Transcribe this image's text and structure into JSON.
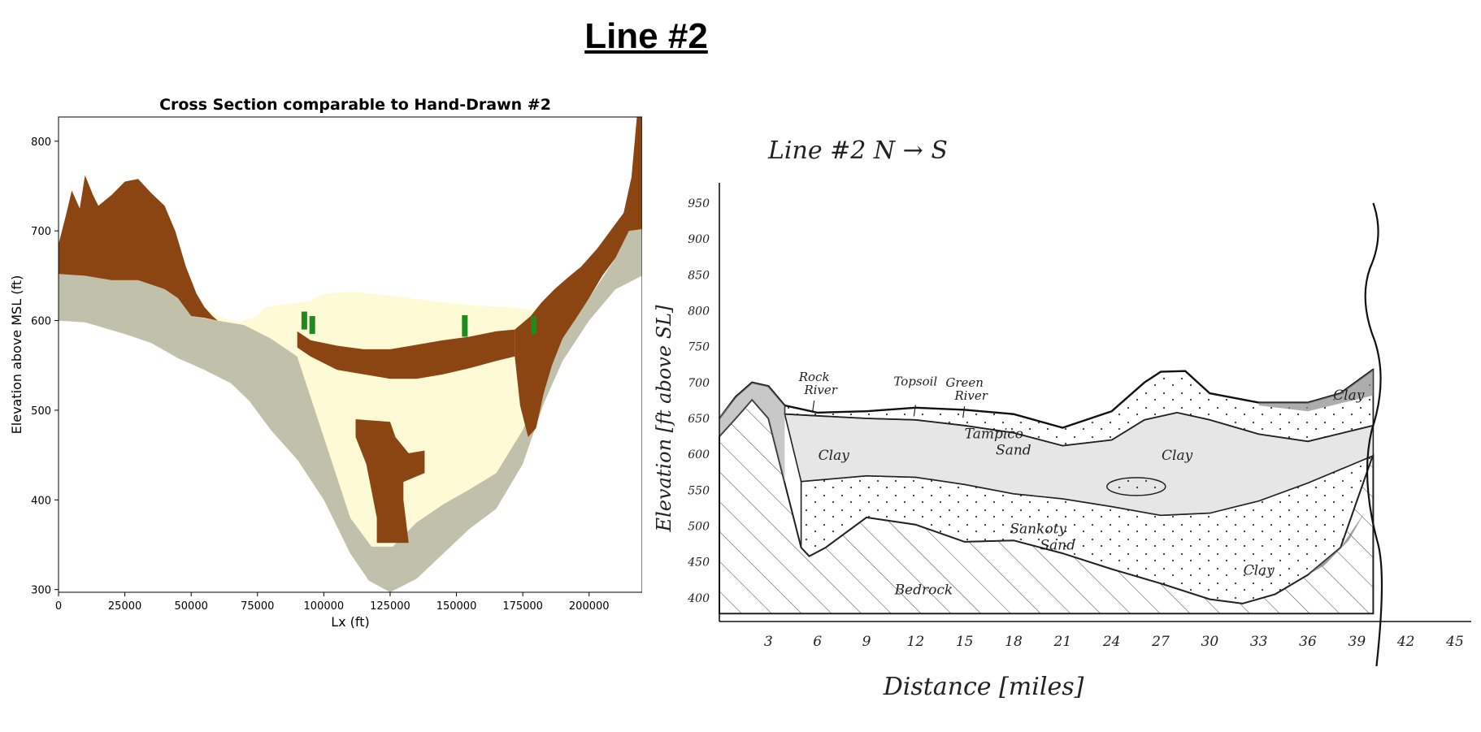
{
  "page_title": "Line #2",
  "chart_data": [
    {
      "type": "heatmap",
      "title": "Cross Section comparable to Hand-Drawn #2",
      "xlabel": "Lx (ft)",
      "ylabel": "Elevation above MSL (ft)",
      "xlim": [
        0,
        220000
      ],
      "ylim": [
        297,
        827
      ],
      "x_ticks": [
        0,
        25000,
        50000,
        75000,
        100000,
        125000,
        150000,
        175000,
        200000
      ],
      "y_ticks": [
        300,
        400,
        500,
        600,
        700,
        800
      ],
      "colors": {
        "bedrock": "#c1c1ab",
        "clay": "#8b4513",
        "sand": "#fdfad5",
        "well": "#1f8a1f"
      },
      "bedrock_base": [
        {
          "x": 0,
          "y": 600
        },
        {
          "x": 10000,
          "y": 598
        },
        {
          "x": 25000,
          "y": 585
        },
        {
          "x": 35000,
          "y": 575
        },
        {
          "x": 45000,
          "y": 558
        },
        {
          "x": 55000,
          "y": 545
        },
        {
          "x": 65000,
          "y": 530
        },
        {
          "x": 72000,
          "y": 510
        },
        {
          "x": 80000,
          "y": 478
        },
        {
          "x": 90000,
          "y": 445
        },
        {
          "x": 100000,
          "y": 400
        },
        {
          "x": 110000,
          "y": 340
        },
        {
          "x": 117000,
          "y": 310
        },
        {
          "x": 125000,
          "y": 297
        },
        {
          "x": 135000,
          "y": 312
        },
        {
          "x": 145000,
          "y": 340
        },
        {
          "x": 155000,
          "y": 368
        },
        {
          "x": 165000,
          "y": 390
        },
        {
          "x": 175000,
          "y": 440
        },
        {
          "x": 183000,
          "y": 508
        },
        {
          "x": 190000,
          "y": 555
        },
        {
          "x": 200000,
          "y": 600
        },
        {
          "x": 210000,
          "y": 635
        },
        {
          "x": 220000,
          "y": 650
        }
      ],
      "bedrock_top": [
        {
          "x": 0,
          "y": 652
        },
        {
          "x": 10000,
          "y": 650
        },
        {
          "x": 20000,
          "y": 645
        },
        {
          "x": 30000,
          "y": 645
        },
        {
          "x": 40000,
          "y": 635
        },
        {
          "x": 45000,
          "y": 625
        },
        {
          "x": 50000,
          "y": 605
        },
        {
          "x": 60000,
          "y": 600
        },
        {
          "x": 70000,
          "y": 595
        },
        {
          "x": 80000,
          "y": 580
        },
        {
          "x": 90000,
          "y": 560
        },
        {
          "x": 100000,
          "y": 470
        },
        {
          "x": 110000,
          "y": 380
        },
        {
          "x": 118000,
          "y": 348
        },
        {
          "x": 126000,
          "y": 348
        },
        {
          "x": 135000,
          "y": 375
        },
        {
          "x": 145000,
          "y": 395
        },
        {
          "x": 155000,
          "y": 412
        },
        {
          "x": 165000,
          "y": 430
        },
        {
          "x": 175000,
          "y": 478
        },
        {
          "x": 182000,
          "y": 530
        },
        {
          "x": 190000,
          "y": 580
        },
        {
          "x": 200000,
          "y": 625
        },
        {
          "x": 210000,
          "y": 670
        },
        {
          "x": 215000,
          "y": 700
        },
        {
          "x": 220000,
          "y": 702
        }
      ],
      "upper_clay_top": [
        {
          "x": 0,
          "y": 685
        },
        {
          "x": 3000,
          "y": 720
        },
        {
          "x": 5000,
          "y": 745
        },
        {
          "x": 8000,
          "y": 725
        },
        {
          "x": 10000,
          "y": 762
        },
        {
          "x": 13000,
          "y": 740
        },
        {
          "x": 15000,
          "y": 728
        },
        {
          "x": 20000,
          "y": 740
        },
        {
          "x": 25000,
          "y": 755
        },
        {
          "x": 30000,
          "y": 758
        },
        {
          "x": 35000,
          "y": 742
        },
        {
          "x": 40000,
          "y": 728
        },
        {
          "x": 44000,
          "y": 700
        },
        {
          "x": 48000,
          "y": 660
        },
        {
          "x": 52000,
          "y": 630
        },
        {
          "x": 55000,
          "y": 615
        },
        {
          "x": 58000,
          "y": 605
        },
        {
          "x": 60000,
          "y": 600
        }
      ],
      "upper_clay_base": [
        {
          "x": 60000,
          "y": 600
        },
        {
          "x": 55000,
          "y": 603
        },
        {
          "x": 50000,
          "y": 605
        },
        {
          "x": 45000,
          "y": 625
        },
        {
          "x": 40000,
          "y": 635
        },
        {
          "x": 30000,
          "y": 645
        },
        {
          "x": 20000,
          "y": 645
        },
        {
          "x": 10000,
          "y": 650
        },
        {
          "x": 0,
          "y": 652
        }
      ],
      "sand_top": [
        {
          "x": 55000,
          "y": 615
        },
        {
          "x": 60000,
          "y": 605
        },
        {
          "x": 68000,
          "y": 598
        },
        {
          "x": 75000,
          "y": 605
        },
        {
          "x": 78000,
          "y": 615
        },
        {
          "x": 85000,
          "y": 618
        },
        {
          "x": 95000,
          "y": 622
        },
        {
          "x": 100000,
          "y": 630
        },
        {
          "x": 110000,
          "y": 632
        },
        {
          "x": 125000,
          "y": 628
        },
        {
          "x": 140000,
          "y": 622
        },
        {
          "x": 155000,
          "y": 617
        },
        {
          "x": 170000,
          "y": 615
        },
        {
          "x": 178000,
          "y": 612
        },
        {
          "x": 185000,
          "y": 620
        },
        {
          "x": 190000,
          "y": 625
        }
      ],
      "middle_clay_upper": [
        {
          "x": 90000,
          "y": 588
        },
        {
          "x": 95000,
          "y": 578
        },
        {
          "x": 105000,
          "y": 572
        },
        {
          "x": 115000,
          "y": 568
        },
        {
          "x": 125000,
          "y": 568
        },
        {
          "x": 135000,
          "y": 573
        },
        {
          "x": 145000,
          "y": 578
        },
        {
          "x": 155000,
          "y": 582
        },
        {
          "x": 165000,
          "y": 588
        },
        {
          "x": 172000,
          "y": 590
        }
      ],
      "middle_clay_lower": [
        {
          "x": 172000,
          "y": 560
        },
        {
          "x": 165000,
          "y": 555
        },
        {
          "x": 155000,
          "y": 547
        },
        {
          "x": 145000,
          "y": 540
        },
        {
          "x": 135000,
          "y": 535
        },
        {
          "x": 125000,
          "y": 535
        },
        {
          "x": 115000,
          "y": 540
        },
        {
          "x": 105000,
          "y": 545
        },
        {
          "x": 95000,
          "y": 560
        },
        {
          "x": 90000,
          "y": 570
        }
      ],
      "right_clay_wedge": [
        {
          "x": 172000,
          "y": 590
        },
        {
          "x": 178000,
          "y": 605
        },
        {
          "x": 182000,
          "y": 620
        },
        {
          "x": 187000,
          "y": 635
        },
        {
          "x": 192000,
          "y": 648
        },
        {
          "x": 197000,
          "y": 660
        },
        {
          "x": 203000,
          "y": 680
        },
        {
          "x": 208000,
          "y": 700
        },
        {
          "x": 213000,
          "y": 720
        },
        {
          "x": 216000,
          "y": 760
        },
        {
          "x": 218000,
          "y": 827
        },
        {
          "x": 220000,
          "y": 827
        },
        {
          "x": 220000,
          "y": 702
        },
        {
          "x": 215000,
          "y": 700
        },
        {
          "x": 210000,
          "y": 670
        },
        {
          "x": 205000,
          "y": 650
        },
        {
          "x": 200000,
          "y": 625
        },
        {
          "x": 195000,
          "y": 602
        },
        {
          "x": 190000,
          "y": 580
        },
        {
          "x": 186000,
          "y": 550
        },
        {
          "x": 183000,
          "y": 520
        },
        {
          "x": 180000,
          "y": 480
        },
        {
          "x": 177000,
          "y": 470
        },
        {
          "x": 174000,
          "y": 505
        },
        {
          "x": 172000,
          "y": 560
        }
      ],
      "lower_clay_body": [
        {
          "x": 112000,
          "y": 490
        },
        {
          "x": 125000,
          "y": 487
        },
        {
          "x": 127000,
          "y": 470
        },
        {
          "x": 132000,
          "y": 452
        },
        {
          "x": 138000,
          "y": 455
        },
        {
          "x": 138000,
          "y": 430
        },
        {
          "x": 130000,
          "y": 420
        },
        {
          "x": 130000,
          "y": 400
        },
        {
          "x": 132000,
          "y": 352
        },
        {
          "x": 120000,
          "y": 352
        },
        {
          "x": 120000,
          "y": 380
        },
        {
          "x": 118000,
          "y": 410
        },
        {
          "x": 116000,
          "y": 440
        },
        {
          "x": 112000,
          "y": 470
        }
      ],
      "wells": [
        {
          "x": 92500,
          "bottom": 590,
          "top": 610
        },
        {
          "x": 95500,
          "bottom": 585,
          "top": 605
        },
        {
          "x": 153000,
          "bottom": 582,
          "top": 606
        },
        {
          "x": 179000,
          "bottom": 585,
          "top": 605
        }
      ]
    },
    {
      "type": "area",
      "title": "Line #2   N → S",
      "xlabel": "Distance [miles]",
      "ylabel": "Elevation [ft above SL]",
      "x_ticks": [
        "3",
        "6",
        "9",
        "12",
        "15",
        "18",
        "21",
        "24",
        "27",
        "30",
        "33",
        "36",
        "39",
        "42",
        "45"
      ],
      "y_ticks": [
        "950",
        "900",
        "850",
        "800",
        "750",
        "700",
        "650",
        "600",
        "550",
        "500",
        "450",
        "400"
      ],
      "xlim": [
        0,
        45
      ],
      "ylim": [
        350,
        950
      ],
      "annotations": [
        {
          "text": "Rock River",
          "x": 5.8,
          "y": 668
        },
        {
          "text": "Topsoil",
          "x": 12,
          "y": 662
        },
        {
          "text": "Green River",
          "x": 15,
          "y": 660
        }
      ],
      "layer_labels": [
        {
          "text": "Clay",
          "x": 38.5,
          "y": 676
        },
        {
          "text": "Tampico Sand",
          "x": 16.8,
          "y": 622
        },
        {
          "text": "Clay",
          "x": 7,
          "y": 592
        },
        {
          "text": "Clay",
          "x": 28,
          "y": 592
        },
        {
          "text": "Sankoty Sand",
          "x": 19.5,
          "y": 490
        },
        {
          "text": "Clay",
          "x": 33,
          "y": 432
        },
        {
          "text": "Bedrock",
          "x": 12.5,
          "y": 405
        }
      ],
      "surface": [
        {
          "x": 0,
          "y": 650
        },
        {
          "x": 1,
          "y": 680
        },
        {
          "x": 2,
          "y": 700
        },
        {
          "x": 3,
          "y": 695
        },
        {
          "x": 4,
          "y": 668
        },
        {
          "x": 6,
          "y": 658
        },
        {
          "x": 9,
          "y": 660
        },
        {
          "x": 12,
          "y": 665
        },
        {
          "x": 15,
          "y": 662
        },
        {
          "x": 18,
          "y": 656
        },
        {
          "x": 21,
          "y": 637
        },
        {
          "x": 24,
          "y": 660
        },
        {
          "x": 26,
          "y": 700
        },
        {
          "x": 27,
          "y": 715
        },
        {
          "x": 28.5,
          "y": 716
        },
        {
          "x": 30,
          "y": 685
        },
        {
          "x": 33,
          "y": 672
        },
        {
          "x": 36,
          "y": 672
        },
        {
          "x": 38,
          "y": 685
        },
        {
          "x": 40,
          "y": 718
        }
      ],
      "sand_base": [
        {
          "x": 4,
          "y": 656
        },
        {
          "x": 9,
          "y": 650
        },
        {
          "x": 12,
          "y": 648
        },
        {
          "x": 15,
          "y": 640
        },
        {
          "x": 18,
          "y": 630
        },
        {
          "x": 21,
          "y": 612
        },
        {
          "x": 24,
          "y": 620
        },
        {
          "x": 26,
          "y": 648
        },
        {
          "x": 28,
          "y": 658
        },
        {
          "x": 30,
          "y": 648
        },
        {
          "x": 33,
          "y": 628
        },
        {
          "x": 36,
          "y": 618
        },
        {
          "x": 40,
          "y": 640
        }
      ],
      "clay_base": [
        {
          "x": 5,
          "y": 562
        },
        {
          "x": 9,
          "y": 570
        },
        {
          "x": 12,
          "y": 568
        },
        {
          "x": 15,
          "y": 558
        },
        {
          "x": 18,
          "y": 545
        },
        {
          "x": 21,
          "y": 538
        },
        {
          "x": 24,
          "y": 527
        },
        {
          "x": 27,
          "y": 515
        },
        {
          "x": 30,
          "y": 518
        },
        {
          "x": 33,
          "y": 535
        },
        {
          "x": 36,
          "y": 560
        },
        {
          "x": 40,
          "y": 598
        }
      ],
      "bedrock_top": [
        {
          "x": 0,
          "y": 625
        },
        {
          "x": 1,
          "y": 650
        },
        {
          "x": 2,
          "y": 676
        },
        {
          "x": 3,
          "y": 650
        },
        {
          "x": 4,
          "y": 560
        },
        {
          "x": 5,
          "y": 470
        },
        {
          "x": 5.5,
          "y": 458
        },
        {
          "x": 6.5,
          "y": 470
        },
        {
          "x": 9,
          "y": 512
        },
        {
          "x": 12,
          "y": 502
        },
        {
          "x": 15,
          "y": 478
        },
        {
          "x": 18,
          "y": 480
        },
        {
          "x": 21,
          "y": 462
        },
        {
          "x": 24,
          "y": 440
        },
        {
          "x": 27,
          "y": 420
        },
        {
          "x": 30,
          "y": 398
        },
        {
          "x": 32,
          "y": 392
        },
        {
          "x": 34,
          "y": 405
        },
        {
          "x": 36,
          "y": 432
        },
        {
          "x": 38,
          "y": 470
        },
        {
          "x": 40,
          "y": 600
        }
      ]
    }
  ]
}
